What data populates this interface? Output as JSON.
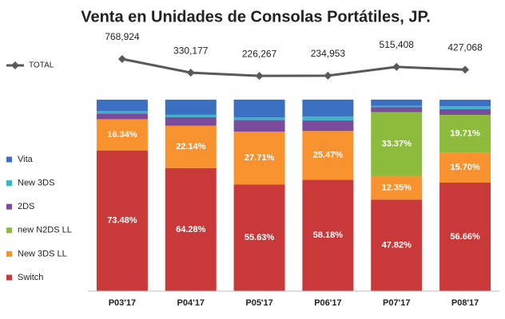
{
  "chart_data": {
    "type": "bar",
    "stacked": true,
    "title": "Venta en Unidades de Consolas Portátiles, JP.",
    "categories": [
      "P03'17",
      "P04'17",
      "P05'17",
      "P06'17",
      "P07'17",
      "P08'17"
    ],
    "ylim": [
      0,
      100
    ],
    "y2lim": [
      0,
      1000000
    ],
    "grid": false,
    "legend": "left",
    "series": [
      {
        "name": "Switch",
        "color": "#c9393a",
        "values": [
          73.48,
          64.28,
          55.63,
          58.18,
          47.82,
          56.66
        ],
        "value_labels": [
          "73.48%",
          "64.28%",
          "55.63%",
          "58.18%",
          "47.82%",
          "56.66%"
        ]
      },
      {
        "name": "New 3DS LL",
        "color": "#f7922f",
        "values": [
          16.34,
          22.14,
          27.71,
          25.47,
          12.35,
          15.7
        ],
        "value_labels": [
          "16.34%",
          "22.14%",
          "27.71%",
          "25.47%",
          "12.35%",
          "15.70%"
        ]
      },
      {
        "name": "new N2DS LL",
        "color": "#8dbb3c",
        "values": [
          0,
          0,
          0,
          0,
          33.37,
          19.71
        ],
        "value_labels": [
          null,
          null,
          null,
          null,
          "33.37%",
          "19.71%"
        ]
      },
      {
        "name": "2DS",
        "color": "#7b4b9e",
        "values": [
          3.0,
          4.5,
          6.0,
          5.5,
          2.5,
          3.0
        ],
        "value_labels": [
          null,
          null,
          null,
          null,
          null,
          null
        ]
      },
      {
        "name": "New 3DS",
        "color": "#3db2c9",
        "values": [
          1.2,
          1.2,
          1.5,
          2.0,
          0.8,
          1.5
        ],
        "value_labels": [
          null,
          null,
          null,
          null,
          null,
          null
        ]
      },
      {
        "name": "Vita",
        "color": "#3b6fc1",
        "values": [
          6.0,
          7.9,
          9.2,
          8.9,
          3.2,
          3.4
        ],
        "value_labels": [
          null,
          null,
          null,
          null,
          null,
          null
        ]
      },
      {
        "name": "TOTAL",
        "type": "line",
        "axis": "y2",
        "color": "#595959",
        "values": [
          768924,
          330177,
          226267,
          234953,
          515408,
          427068
        ],
        "value_labels": [
          "768,924",
          "330,177",
          "226,267",
          "234,953",
          "515,408",
          "427,068"
        ]
      }
    ]
  }
}
